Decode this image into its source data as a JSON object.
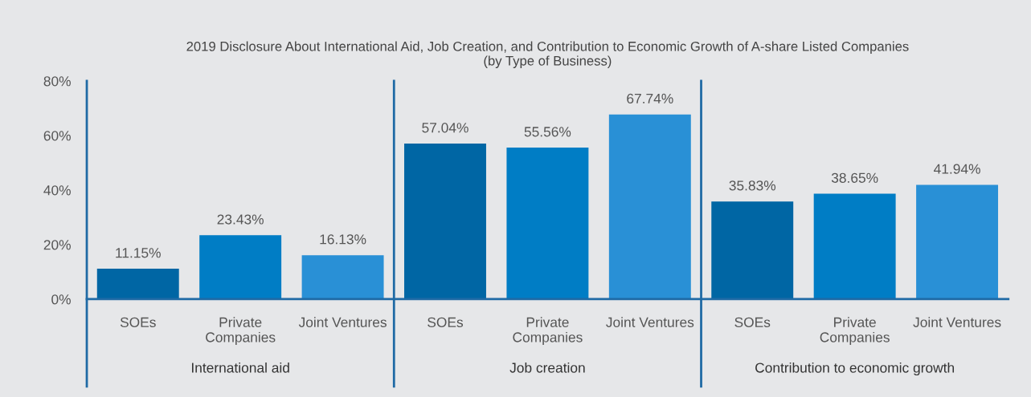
{
  "chart_data": {
    "type": "bar",
    "title": "2019 Disclosure About International Aid, Job Creation, and Contribution to Economic Growth of A-share Listed Companies\n(by Type of Business)",
    "categories": [
      "SOEs",
      "Private Companies",
      "Joint Ventures",
      "SOEs",
      "Private Companies",
      "Joint Ventures",
      "SOEs",
      "Private Companies",
      "Joint Ventures"
    ],
    "values": [
      11.15,
      23.43,
      16.13,
      57.04,
      55.56,
      67.74,
      35.83,
      38.65,
      41.94
    ],
    "colors": [
      "#0066a4",
      "#007dc5",
      "#2990d6",
      "#0066a4",
      "#007dc5",
      "#2990d6",
      "#0066a4",
      "#007dc5",
      "#2990d6"
    ],
    "value_labels": [
      "11.15%",
      "23.43%",
      "16.13%",
      "57.04%",
      "55.56%",
      "67.74%",
      "35.83%",
      "38.65%",
      "41.94%"
    ],
    "annotations": [
      "International aid",
      "Job creation",
      "Contribution to economic growth"
    ],
    "ylim": [
      0,
      80
    ],
    "yticks": [
      {
        "value": 0,
        "label": "0%"
      },
      {
        "value": 20,
        "label": "20%"
      },
      {
        "value": 40,
        "label": "40%"
      },
      {
        "value": 60,
        "label": "60%"
      },
      {
        "value": 80,
        "label": "80%"
      }
    ],
    "grid": false,
    "legend": false
  }
}
